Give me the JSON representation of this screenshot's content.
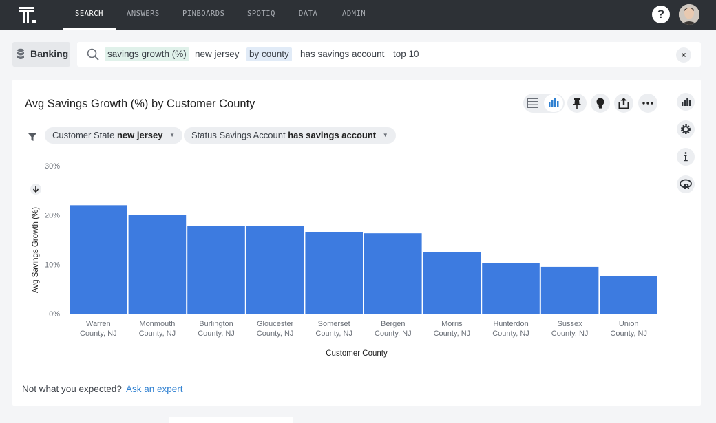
{
  "nav": {
    "items": [
      "SEARCH",
      "ANSWERS",
      "PINBOARDS",
      "SPOTIQ",
      "DATA",
      "ADMIN"
    ],
    "active": "SEARCH",
    "help_label": "?"
  },
  "search": {
    "source_label": "Banking",
    "tokens": [
      {
        "text": "savings growth (%)",
        "kind": "measure"
      },
      {
        "text": "new jersey",
        "kind": "plain"
      },
      {
        "text": "by county",
        "kind": "attribute"
      },
      {
        "text": "has savings account",
        "kind": "plain"
      },
      {
        "text": "top 10",
        "kind": "plain"
      }
    ],
    "clear_label": "×"
  },
  "answer": {
    "title": "Avg Savings Growth (%) by Customer County",
    "filters": [
      {
        "label": "Customer State",
        "value": "new jersey"
      },
      {
        "label": "Status Savings Account",
        "value": "has savings account"
      }
    ],
    "toolbar_icons": [
      "table-icon",
      "bar-chart-icon",
      "pin-icon",
      "lightbulb-icon",
      "share-icon",
      "more-icon"
    ],
    "sidebar_icons": [
      "chart-type-icon",
      "settings-gear-icon",
      "info-icon",
      "r-analysis-icon"
    ]
  },
  "chart_data": {
    "type": "bar",
    "title": "Avg Savings Growth (%) by Customer County",
    "xlabel": "Customer County",
    "ylabel": "Avg Savings Growth (%)",
    "categories": [
      [
        "Warren",
        "County, NJ"
      ],
      [
        "Monmouth",
        "County, NJ"
      ],
      [
        "Burlington",
        "County, NJ"
      ],
      [
        "Gloucester",
        "County, NJ"
      ],
      [
        "Somerset",
        "County, NJ"
      ],
      [
        "Bergen",
        "County, NJ"
      ],
      [
        "Morris",
        "County, NJ"
      ],
      [
        "Hunterdon",
        "County, NJ"
      ],
      [
        "Sussex",
        "County, NJ"
      ],
      [
        "Union",
        "County, NJ"
      ]
    ],
    "values": [
      22.0,
      20.0,
      17.8,
      17.8,
      16.6,
      16.3,
      12.5,
      10.3,
      9.5,
      7.6
    ],
    "ylim": [
      0,
      30
    ],
    "yticks": [
      "0%",
      "10%",
      "20%",
      "30%"
    ],
    "bar_color": "#3d7be0",
    "grid": false
  },
  "footer": {
    "question": "Not what you expected?",
    "link": "Ask an expert"
  },
  "colors": {
    "nav_bg": "#2d3136",
    "accent_link": "#2f80d1",
    "measure_token": "#e0f1ea",
    "attribute_token": "#e1ebf7"
  }
}
